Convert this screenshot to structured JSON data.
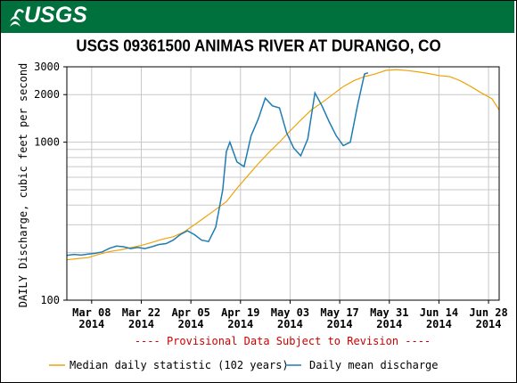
{
  "header": {
    "logo_text": "USGS",
    "background": "#00703c"
  },
  "chart_data": {
    "type": "line",
    "title": "USGS 09361500 ANIMAS RIVER AT DURANGO, CO",
    "ylabel": "DAILY Discharge, cubic feet per second",
    "yscale": "log",
    "ylim": [
      100,
      3000
    ],
    "ytick_labels": [
      "100",
      "1000",
      "2000",
      "3000"
    ],
    "xlim": [
      "2014-03-01",
      "2014-07-01"
    ],
    "x_ticks": [
      {
        "date": "2014-03-08",
        "label": "Mar 08",
        "year": "2014"
      },
      {
        "date": "2014-03-22",
        "label": "Mar 22",
        "year": "2014"
      },
      {
        "date": "2014-04-05",
        "label": "Apr 05",
        "year": "2014"
      },
      {
        "date": "2014-04-19",
        "label": "Apr 19",
        "year": "2014"
      },
      {
        "date": "2014-05-03",
        "label": "May 03",
        "year": "2014"
      },
      {
        "date": "2014-05-17",
        "label": "May 17",
        "year": "2014"
      },
      {
        "date": "2014-05-31",
        "label": "May 31",
        "year": "2014"
      },
      {
        "date": "2014-06-14",
        "label": "Jun 14",
        "year": "2014"
      },
      {
        "date": "2014-06-28",
        "label": "Jun 28",
        "year": "2014"
      }
    ],
    "annotation": "---- Provisional Data Subject to Revision ----",
    "grid": true,
    "legend_position": "bottom",
    "series": [
      {
        "name": "Median daily statistic (102 years)",
        "color": "#f0a30a",
        "points": [
          [
            "2014-03-01",
            180
          ],
          [
            "2014-03-04",
            183
          ],
          [
            "2014-03-07",
            186
          ],
          [
            "2014-03-10",
            195
          ],
          [
            "2014-03-13",
            203
          ],
          [
            "2014-03-16",
            208
          ],
          [
            "2014-03-19",
            215
          ],
          [
            "2014-03-22",
            222
          ],
          [
            "2014-03-25",
            232
          ],
          [
            "2014-03-28",
            243
          ],
          [
            "2014-03-31",
            252
          ],
          [
            "2014-04-03",
            270
          ],
          [
            "2014-04-06",
            300
          ],
          [
            "2014-04-09",
            335
          ],
          [
            "2014-04-12",
            375
          ],
          [
            "2014-04-15",
            420
          ],
          [
            "2014-04-18",
            510
          ],
          [
            "2014-04-21",
            610
          ],
          [
            "2014-04-24",
            730
          ],
          [
            "2014-04-27",
            860
          ],
          [
            "2014-04-30",
            1000
          ],
          [
            "2014-05-03",
            1180
          ],
          [
            "2014-05-06",
            1380
          ],
          [
            "2014-05-09",
            1600
          ],
          [
            "2014-05-12",
            1780
          ],
          [
            "2014-05-15",
            2000
          ],
          [
            "2014-05-18",
            2250
          ],
          [
            "2014-05-21",
            2450
          ],
          [
            "2014-05-24",
            2600
          ],
          [
            "2014-05-27",
            2700
          ],
          [
            "2014-05-30",
            2850
          ],
          [
            "2014-06-02",
            2880
          ],
          [
            "2014-06-05",
            2840
          ],
          [
            "2014-06-08",
            2790
          ],
          [
            "2014-06-11",
            2720
          ],
          [
            "2014-06-14",
            2640
          ],
          [
            "2014-06-17",
            2600
          ],
          [
            "2014-06-20",
            2450
          ],
          [
            "2014-06-23",
            2250
          ],
          [
            "2014-06-26",
            2050
          ],
          [
            "2014-06-29",
            1880
          ],
          [
            "2014-07-01",
            1600
          ]
        ]
      },
      {
        "name": "Daily mean discharge",
        "color": "#1f7cb4",
        "points": [
          [
            "2014-03-01",
            192
          ],
          [
            "2014-03-03",
            195
          ],
          [
            "2014-03-05",
            193
          ],
          [
            "2014-03-07",
            196
          ],
          [
            "2014-03-09",
            198
          ],
          [
            "2014-03-11",
            202
          ],
          [
            "2014-03-13",
            213
          ],
          [
            "2014-03-15",
            220
          ],
          [
            "2014-03-17",
            218
          ],
          [
            "2014-03-19",
            212
          ],
          [
            "2014-03-21",
            216
          ],
          [
            "2014-03-23",
            212
          ],
          [
            "2014-03-25",
            218
          ],
          [
            "2014-03-27",
            225
          ],
          [
            "2014-03-29",
            228
          ],
          [
            "2014-03-31",
            240
          ],
          [
            "2014-04-02",
            260
          ],
          [
            "2014-04-04",
            275
          ],
          [
            "2014-04-06",
            260
          ],
          [
            "2014-04-08",
            240
          ],
          [
            "2014-04-10",
            235
          ],
          [
            "2014-04-12",
            290
          ],
          [
            "2014-04-14",
            500
          ],
          [
            "2014-04-15",
            870
          ],
          [
            "2014-04-16",
            1000
          ],
          [
            "2014-04-18",
            750
          ],
          [
            "2014-04-20",
            700
          ],
          [
            "2014-04-22",
            1100
          ],
          [
            "2014-04-24",
            1400
          ],
          [
            "2014-04-26",
            1900
          ],
          [
            "2014-04-28",
            1700
          ],
          [
            "2014-04-30",
            1650
          ],
          [
            "2014-05-02",
            1150
          ],
          [
            "2014-05-04",
            920
          ],
          [
            "2014-05-06",
            820
          ],
          [
            "2014-05-08",
            1050
          ],
          [
            "2014-05-10",
            2050
          ],
          [
            "2014-05-12",
            1700
          ],
          [
            "2014-05-14",
            1350
          ],
          [
            "2014-05-16",
            1100
          ],
          [
            "2014-05-18",
            950
          ],
          [
            "2014-05-20",
            1000
          ],
          [
            "2014-05-22",
            1700
          ],
          [
            "2014-05-24",
            2700
          ],
          [
            "2014-05-25",
            2750
          ]
        ]
      }
    ]
  }
}
